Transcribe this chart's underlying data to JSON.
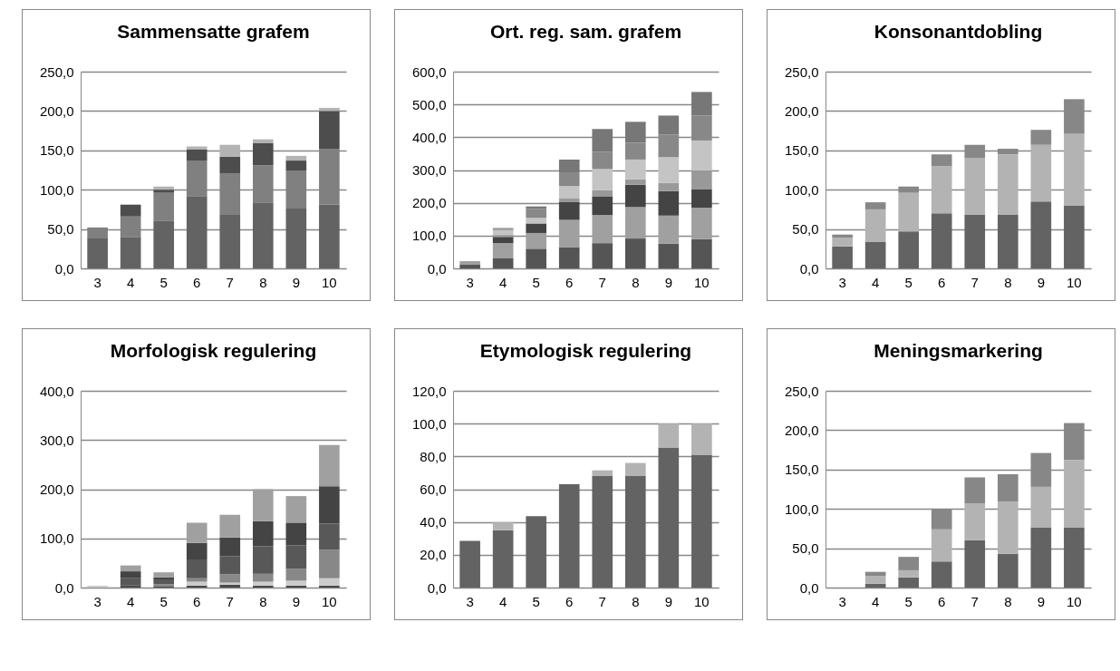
{
  "chart_data": [
    {
      "type": "bar",
      "title": "Sammensatte grafem",
      "categories": [
        "3",
        "4",
        "5",
        "6",
        "7",
        "8",
        "9",
        "10"
      ],
      "stacked": true,
      "grid": "y",
      "ylim": [
        0,
        250
      ],
      "yticks": [
        {
          "value": 0,
          "label": "0,0"
        },
        {
          "value": 50,
          "label": "50,0"
        },
        {
          "value": 100,
          "label": "100,0"
        },
        {
          "value": 150,
          "label": "150,0"
        },
        {
          "value": 200,
          "label": "200,0"
        },
        {
          "value": 250,
          "label": "250,0"
        }
      ],
      "series": [
        {
          "color": "#636363",
          "values": [
            38,
            40,
            60,
            92,
            68,
            83,
            76,
            81
          ]
        },
        {
          "color": "#808080",
          "values": [
            14,
            26,
            36,
            45,
            53,
            48,
            48,
            71
          ]
        },
        {
          "color": "#4d4d4d",
          "values": [
            0,
            15,
            4,
            14,
            21,
            28,
            13,
            48
          ]
        },
        {
          "color": "#b3b3b3",
          "values": [
            0,
            0,
            4,
            4,
            15,
            5,
            6,
            4
          ]
        }
      ]
    },
    {
      "type": "bar",
      "title": "Ort. reg. sam. grafem",
      "categories": [
        "3",
        "4",
        "5",
        "6",
        "7",
        "8",
        "9",
        "10"
      ],
      "stacked": true,
      "grid": "y",
      "ylim": [
        0,
        600
      ],
      "yticks": [
        {
          "value": 0,
          "label": "0,0"
        },
        {
          "value": 100,
          "label": "100,0"
        },
        {
          "value": 200,
          "label": "200,0"
        },
        {
          "value": 300,
          "label": "300,0"
        },
        {
          "value": 400,
          "label": "400,0"
        },
        {
          "value": 500,
          "label": "500,0"
        },
        {
          "value": 600,
          "label": "600,0"
        }
      ],
      "series": [
        {
          "color": "#555555",
          "values": [
            11,
            32,
            60,
            65,
            77,
            91,
            75,
            89
          ]
        },
        {
          "color": "#a0a0a0",
          "values": [
            11,
            45,
            48,
            83,
            86,
            96,
            86,
            96
          ]
        },
        {
          "color": "#444444",
          "values": [
            0,
            19,
            29,
            54,
            57,
            68,
            75,
            57
          ]
        },
        {
          "color": "#999999",
          "values": [
            0,
            6,
            null,
            11,
            19,
            17,
            25,
            57
          ]
        },
        {
          "color": "#c4c4c4",
          "values": [
            0,
            15,
            17,
            38,
            64,
            60,
            78,
            91
          ]
        },
        {
          "color": "#888888",
          "values": [
            0,
            3,
            27,
            42,
            53,
            51,
            69,
            76
          ]
        },
        {
          "color": "#777777",
          "values": [
            0,
            3,
            8,
            39,
            69,
            64,
            58,
            72
          ]
        }
      ]
    },
    {
      "type": "bar",
      "title": "Konsonantdobling",
      "categories": [
        "3",
        "4",
        "5",
        "6",
        "7",
        "8",
        "9",
        "10"
      ],
      "stacked": true,
      "grid": "y",
      "ylim": [
        0,
        250
      ],
      "yticks": [
        {
          "value": 0,
          "label": "0,0"
        },
        {
          "value": 50,
          "label": "50,0"
        },
        {
          "value": 100,
          "label": "100,0"
        },
        {
          "value": 150,
          "label": "150,0"
        },
        {
          "value": 200,
          "label": "200,0"
        },
        {
          "value": 250,
          "label": "250,0"
        }
      ],
      "series": [
        {
          "color": "#636363",
          "values": [
            28,
            34,
            47,
            70,
            68,
            68,
            85,
            80
          ]
        },
        {
          "color": "#b3b3b3",
          "values": [
            11,
            41,
            49,
            60,
            72,
            77,
            72,
            91
          ]
        },
        {
          "color": "#878787",
          "values": [
            4,
            9,
            8,
            15,
            17,
            7,
            19,
            44
          ]
        }
      ]
    },
    {
      "type": "bar",
      "title": "Morfologisk regulering",
      "categories": [
        "3",
        "4",
        "5",
        "6",
        "7",
        "8",
        "9",
        "10"
      ],
      "stacked": true,
      "grid": "y",
      "ylim": [
        0,
        400
      ],
      "yticks": [
        {
          "value": 0,
          "label": "0,0"
        },
        {
          "value": 100,
          "label": "100,0"
        },
        {
          "value": 200,
          "label": "200,0"
        },
        {
          "value": 300,
          "label": "300,0"
        },
        {
          "value": 400,
          "label": "400,0"
        }
      ],
      "series": [
        {
          "color": "#4a4a4a",
          "values": [
            0,
            5,
            3,
            4,
            6,
            4,
            4,
            4
          ]
        },
        {
          "color": "#cccccc",
          "values": [
            4,
            0,
            null,
            8,
            4,
            8,
            10,
            15
          ]
        },
        {
          "color": "#888888",
          "values": [
            0,
            0,
            4,
            7,
            17,
            16,
            24,
            58
          ]
        },
        {
          "color": "#585858",
          "values": [
            0,
            14,
            8,
            38,
            37,
            56,
            48,
            53
          ]
        },
        {
          "color": "#444444",
          "values": [
            0,
            14,
            6,
            34,
            38,
            51,
            46,
            76
          ]
        },
        {
          "color": "#a0a0a0",
          "values": [
            0,
            12,
            10,
            41,
            46,
            65,
            54,
            84
          ]
        }
      ]
    },
    {
      "type": "bar",
      "title": "Etymologisk regulering",
      "categories": [
        "3",
        "4",
        "5",
        "6",
        "7",
        "8",
        "9",
        "10"
      ],
      "stacked": true,
      "grid": "y",
      "ylim": [
        0,
        120
      ],
      "yticks": [
        {
          "value": 0,
          "label": "0,0"
        },
        {
          "value": 20,
          "label": "20,0"
        },
        {
          "value": 40,
          "label": "40,0"
        },
        {
          "value": 60,
          "label": "60,0"
        },
        {
          "value": 80,
          "label": "80,0"
        },
        {
          "value": 100,
          "label": "100,0"
        },
        {
          "value": 120,
          "label": "120,0"
        }
      ],
      "series": [
        {
          "color": "#636363",
          "values": [
            28.5,
            35,
            43.5,
            63,
            68,
            68,
            85.5,
            81
          ]
        },
        {
          "color": "#b3b3b3",
          "values": [
            0,
            5,
            0,
            0,
            3.5,
            8,
            14.5,
            19
          ]
        }
      ]
    },
    {
      "type": "bar",
      "title": "Meningsmarkering",
      "categories": [
        "3",
        "4",
        "5",
        "6",
        "7",
        "8",
        "9",
        "10"
      ],
      "stacked": true,
      "grid": "y",
      "ylim": [
        0,
        250
      ],
      "yticks": [
        {
          "value": 0,
          "label": "0,0"
        },
        {
          "value": 50,
          "label": "50,0"
        },
        {
          "value": 100,
          "label": "100,0"
        },
        {
          "value": 150,
          "label": "150,0"
        },
        {
          "value": 200,
          "label": "200,0"
        },
        {
          "value": 250,
          "label": "250,0"
        }
      ],
      "series": [
        {
          "color": "#636363",
          "values": [
            0,
            5,
            13,
            33,
            60,
            43,
            76,
            76
          ]
        },
        {
          "color": "#b3b3b3",
          "values": [
            0,
            10,
            9,
            41,
            47,
            66,
            52,
            86
          ]
        },
        {
          "color": "#878787",
          "values": [
            0,
            5,
            17,
            26,
            33,
            35,
            43,
            47
          ]
        }
      ]
    }
  ]
}
